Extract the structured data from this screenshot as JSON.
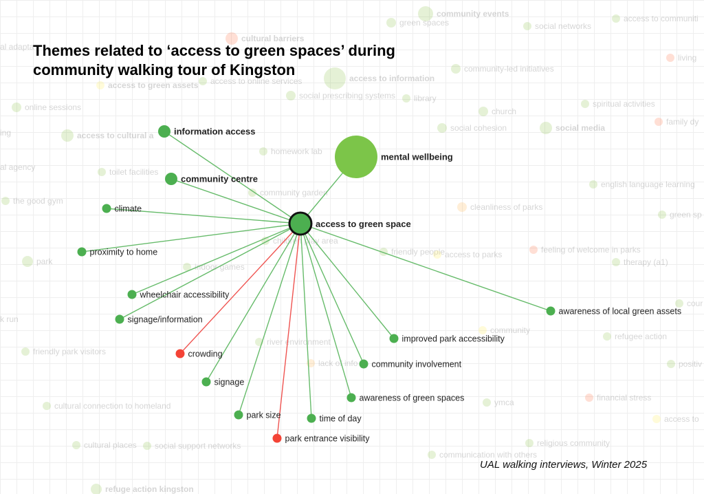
{
  "title": "Themes related to ‘access to green spaces’ during community walking tour of Kingston",
  "credit": "UAL walking interviews, Winter 2025",
  "colors": {
    "green": "#4caf50",
    "large_green": "#7cc549",
    "red": "#f44336",
    "edge_green": "#66bb6a",
    "edge_red": "#ef5350",
    "center_border": "#111111",
    "faded_green": "#8bc34a",
    "faded_red": "#ff7043",
    "faded_orange": "#ffb74d",
    "faded_yellow": "#ffee58"
  },
  "center": {
    "label": "access to green space"
  },
  "nodes": [
    {
      "label": "mental wellbeing",
      "color": "large_green",
      "size": "large"
    },
    {
      "label": "information access",
      "color": "green",
      "size": "medium"
    },
    {
      "label": "community centre",
      "color": "green",
      "size": "medium"
    },
    {
      "label": "climate",
      "color": "green",
      "size": "small"
    },
    {
      "label": "proximity to home",
      "color": "green",
      "size": "small"
    },
    {
      "label": "wheelchair accessibility",
      "color": "green",
      "size": "small"
    },
    {
      "label": "signage/information",
      "color": "green",
      "size": "small"
    },
    {
      "label": "crowding",
      "color": "red",
      "size": "small"
    },
    {
      "label": "signage",
      "color": "green",
      "size": "small"
    },
    {
      "label": "park size",
      "color": "green",
      "size": "small"
    },
    {
      "label": "park entrance visibility",
      "color": "red",
      "size": "small"
    },
    {
      "label": "time of day",
      "color": "green",
      "size": "small"
    },
    {
      "label": "awareness of green spaces",
      "color": "green",
      "size": "small"
    },
    {
      "label": "community involvement",
      "color": "green",
      "size": "small"
    },
    {
      "label": "improved park accessibility",
      "color": "green",
      "size": "small"
    },
    {
      "label": "awareness of local green assets",
      "color": "green",
      "size": "small"
    }
  ],
  "background_nodes": [
    {
      "label": "community events",
      "color": "faded_green"
    },
    {
      "label": "green spaces",
      "color": "faded_green"
    },
    {
      "label": "social networks",
      "color": "faded_green"
    },
    {
      "label": "access to communiti",
      "color": "faded_green"
    },
    {
      "label": "cultural barriers",
      "color": "faded_red"
    },
    {
      "label": "access to information",
      "color": "faded_green"
    },
    {
      "label": "community-led initiatives",
      "color": "faded_green"
    },
    {
      "label": "living",
      "color": "faded_red"
    },
    {
      "label": "access to green assets",
      "color": "faded_yellow"
    },
    {
      "label": "access to online services",
      "color": "faded_green"
    },
    {
      "label": "social prescribing systems",
      "color": "faded_green"
    },
    {
      "label": "library",
      "color": "faded_green"
    },
    {
      "label": "online sessions",
      "color": "faded_green"
    },
    {
      "label": "church",
      "color": "faded_green"
    },
    {
      "label": "spiritual activities",
      "color": "faded_green"
    },
    {
      "label": "social cohesion",
      "color": "faded_green"
    },
    {
      "label": "social media",
      "color": "faded_green"
    },
    {
      "label": "family dy",
      "color": "faded_red"
    },
    {
      "label": "access to cultural a",
      "color": "faded_green"
    },
    {
      "label": "homework lab",
      "color": "faded_green"
    },
    {
      "label": "toilet facilities",
      "color": "faded_green"
    },
    {
      "label": "english language learning",
      "color": "faded_green"
    },
    {
      "label": "community garden",
      "color": "faded_green"
    },
    {
      "label": "the good gym",
      "color": "faded_green"
    },
    {
      "label": "cleanliness of parks",
      "color": "faded_orange"
    },
    {
      "label": "green sp",
      "color": "faded_green"
    },
    {
      "label": "children play area",
      "color": "faded_green"
    },
    {
      "label": "friendly people",
      "color": "faded_green"
    },
    {
      "label": "access to parks",
      "color": "faded_yellow"
    },
    {
      "label": "feeling of welcome in parks",
      "color": "faded_red"
    },
    {
      "label": "park",
      "color": "faded_green"
    },
    {
      "label": "indoor games",
      "color": "faded_green"
    },
    {
      "label": "therapy (a1)",
      "color": "faded_green"
    },
    {
      "label": "cour",
      "color": "faded_green"
    },
    {
      "label": "community",
      "color": "faded_yellow"
    },
    {
      "label": "refugee action",
      "color": "faded_green"
    },
    {
      "label": "friendly park visitors",
      "color": "faded_green"
    },
    {
      "label": "river environment",
      "color": "faded_green"
    },
    {
      "label": "lack of info",
      "color": "faded_orange"
    },
    {
      "label": "positiv",
      "color": "faded_green"
    },
    {
      "label": "cultural connection to homeland",
      "color": "faded_green"
    },
    {
      "label": "ymca",
      "color": "faded_green"
    },
    {
      "label": "financial stress",
      "color": "faded_red"
    },
    {
      "label": "access to",
      "color": "faded_yellow"
    },
    {
      "label": "religious community",
      "color": "faded_green"
    },
    {
      "label": "cultural places",
      "color": "faded_green"
    },
    {
      "label": "social support networks",
      "color": "faded_green"
    },
    {
      "label": "communication with others",
      "color": "faded_green"
    },
    {
      "label": "refuge action kingston",
      "color": "faded_green"
    },
    {
      "label": "k run",
      "color": "faded_green"
    },
    {
      "label": "al agency",
      "color": "faded_green"
    },
    {
      "label": "al adapta",
      "color": "faded_green"
    },
    {
      "label": "ing",
      "color": "faded_green"
    }
  ]
}
